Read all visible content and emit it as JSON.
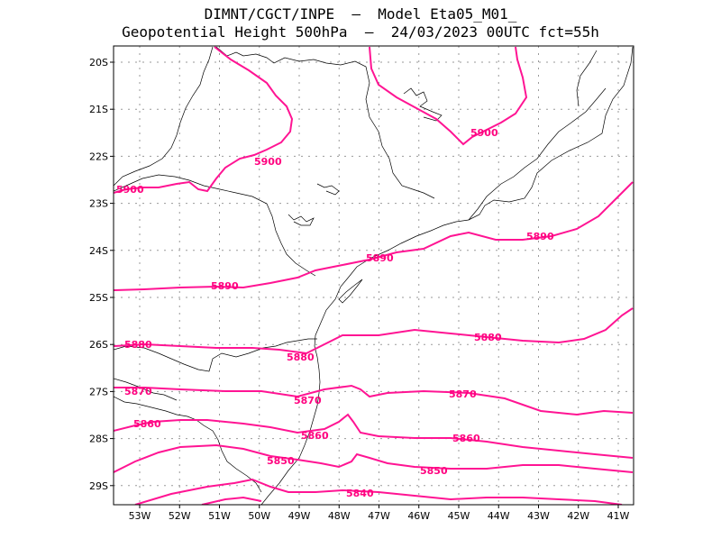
{
  "header": {
    "line1": "DIMNT/CGCT/INPE  –  Model Eta05_M01_",
    "line2": "Geopotential Height 500hPa  –  24/03/2023 00UTC fct=55h"
  },
  "axes": {
    "lat_labels": [
      "20S",
      "21S",
      "22S",
      "23S",
      "24S",
      "25S",
      "26S",
      "27S",
      "28S",
      "29S"
    ],
    "lon_labels": [
      "53W",
      "52W",
      "51W",
      "50W",
      "49W",
      "48W",
      "47W",
      "46W",
      "45W",
      "44W",
      "43W",
      "42W",
      "41W"
    ]
  },
  "contours": {
    "color": "#ff1493",
    "labels": [
      {
        "text": "5900",
        "id": "c5900a"
      },
      {
        "text": "5900",
        "id": "c5900b"
      },
      {
        "text": "5900",
        "id": "c5900c"
      },
      {
        "text": "5890",
        "id": "c5890a"
      },
      {
        "text": "5890",
        "id": "c5890b"
      },
      {
        "text": "5890",
        "id": "c5890c"
      },
      {
        "text": "5880",
        "id": "c5880a"
      },
      {
        "text": "5880",
        "id": "c5880b"
      },
      {
        "text": "5880",
        "id": "c5880c"
      },
      {
        "text": "5870",
        "id": "c5870a"
      },
      {
        "text": "5870",
        "id": "c5870b"
      },
      {
        "text": "5870",
        "id": "c5870c"
      },
      {
        "text": "5860",
        "id": "c5860a"
      },
      {
        "text": "5860",
        "id": "c5860b"
      },
      {
        "text": "5860",
        "id": "c5860c"
      },
      {
        "text": "5850",
        "id": "c5850a"
      },
      {
        "text": "5850",
        "id": "c5850b"
      },
      {
        "text": "5840",
        "id": "c5840a"
      }
    ]
  }
}
